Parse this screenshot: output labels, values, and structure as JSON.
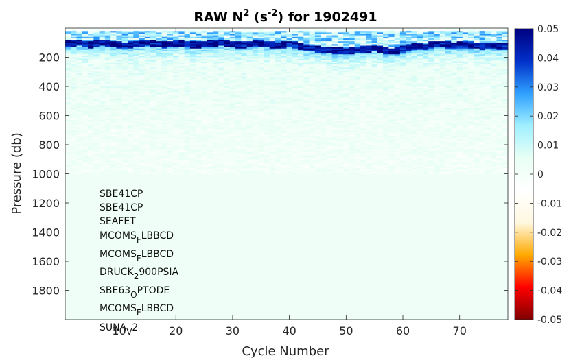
{
  "chart_data": {
    "type": "heatmap",
    "title": {
      "prefix": "RAW N",
      "sup1": "2",
      "mid": " (s",
      "sup2": "-2",
      "suffix": ") for 1902491"
    },
    "xlabel": "Cycle Number",
    "ylabel": "Pressure (db)",
    "xlim": [
      1,
      78
    ],
    "ylim": [
      2000,
      0
    ],
    "x_ticks": [
      10,
      20,
      30,
      40,
      50,
      60,
      70
    ],
    "y_ticks": [
      200,
      400,
      600,
      800,
      1000,
      1200,
      1400,
      1600,
      1800
    ],
    "colorbar": {
      "range": [
        -0.05,
        0.05
      ],
      "ticks": [
        "0.05",
        "0.04",
        "0.03",
        "0.02",
        "0.01",
        "0",
        "-0.01",
        "-0.02",
        "-0.03",
        "-0.04",
        "-0.05"
      ],
      "colors": [
        "#800000",
        "#ff0000",
        "#ffaa00",
        "#fff8e0",
        "#ffffff",
        "#e8fff4",
        "#a0f0ff",
        "#30a0ff",
        "#0030c8",
        "#000080"
      ]
    },
    "pycnocline_depth": [
      100,
      100,
      95,
      105,
      110,
      100,
      95,
      100,
      105,
      110,
      115,
      110,
      105,
      100,
      95,
      100,
      105,
      110,
      105,
      100,
      100,
      105,
      110,
      110,
      105,
      100,
      100,
      95,
      100,
      105,
      110,
      110,
      105,
      100,
      100,
      105,
      110,
      115,
      110,
      105,
      110,
      120,
      130,
      135,
      140,
      145,
      145,
      150,
      150,
      155,
      150,
      145,
      140,
      140,
      135,
      140,
      150,
      155,
      150,
      140,
      130,
      120,
      120,
      125,
      110,
      105,
      105,
      110,
      115,
      110,
      110,
      110,
      115,
      120,
      115,
      115,
      120,
      120
    ],
    "stratification_bottom_db": 1000,
    "deep_value": 0.002,
    "annotations": [
      {
        "text": "SBE41CP"
      },
      {
        "text": "SBE41CP"
      },
      {
        "text": "SEAFET"
      },
      {
        "text": "MCOMS",
        "sub": "F",
        "after": "LBBCD"
      },
      {
        "text": "MCOMS",
        "sub": "F",
        "after": "LBBCD"
      },
      {
        "text": "DRUCK",
        "sub": "2",
        "after": "900PSIA"
      },
      {
        "text": "SBE63",
        "sub": "O",
        "after": "PTODE"
      },
      {
        "text": "MCOMS",
        "sub": "F",
        "after": "LBBCD"
      },
      {
        "text": "SUNA",
        "sub": "V",
        "after": "2"
      }
    ]
  }
}
